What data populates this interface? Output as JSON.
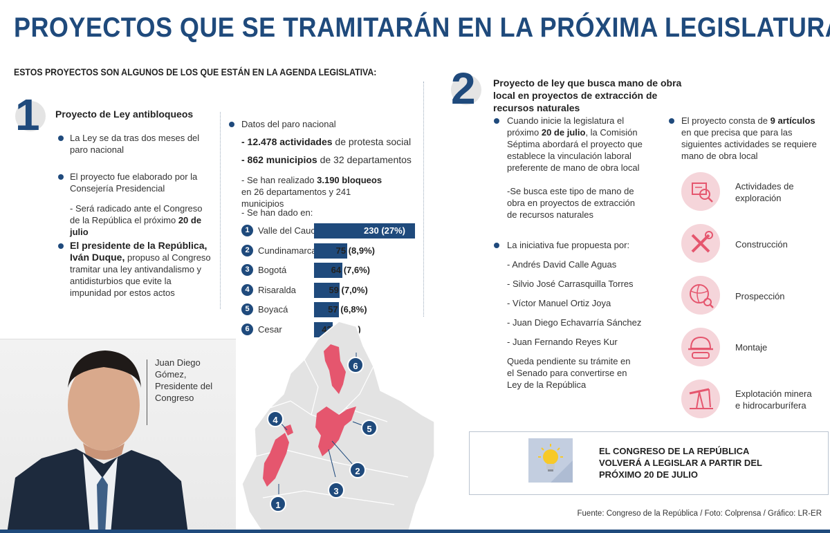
{
  "header": {
    "title": "PROYECTOS QUE SE TRAMITARÁN EN LA PRÓXIMA LEGISLATURA",
    "subtitle": "ESTOS PROYECTOS SON ALGUNOS DE LOS QUE ESTÁN EN LA AGENDA LEGISLATIVA:"
  },
  "section1": {
    "number": "1",
    "heading": "Proyecto de Ley antibloqueos",
    "bullet1": "La Ley se da tras dos meses del paro nacional",
    "bullet2": "El proyecto fue elaborado por la Consejería Presidencial",
    "note_pre": "- Será radicado ante el Congreso de la República el próximo ",
    "note_bold": "20 de julio",
    "bullet3_bold": "El presidente de la República, Iván Duque,",
    "bullet3_rest": " propuso al Congreso tramitar una ley  antivandalismo y antidisturbios que evite la impunidad por estos actos"
  },
  "paro": {
    "heading": "Datos del paro nacional",
    "line1_bold": "- 12.478 actividades",
    "line1_rest": " de protesta social",
    "line2_bold": "- 862 municipios",
    "line2_rest": " de 32 departamentos",
    "line3_pre": "- Se han realizado ",
    "line3_bold": "3.190 bloqueos",
    "line3_rest": " en 26 departamentos y 241 municipios",
    "line4": "- Se han dado en:"
  },
  "chart_data": {
    "type": "bar",
    "categories": [
      "Valle del Cauca",
      "Cundinamarca",
      "Bogotá",
      "Risaralda",
      "Boyacá",
      "Cesar"
    ],
    "ranks": [
      "1",
      "2",
      "3",
      "4",
      "5",
      "6"
    ],
    "values": [
      230,
      75,
      64,
      59,
      57,
      43
    ],
    "labels": [
      "230 (27%)",
      "75 (8,9%)",
      "64 (7,6%)",
      "59 (7,0%)",
      "57 (6,8%)",
      "43 (5,1%)"
    ],
    "percentages": [
      27,
      8.9,
      7.6,
      7.0,
      6.8,
      5.1
    ],
    "color": "#1f4a7c"
  },
  "photo": {
    "caption": "Juan Diego Gómez, Presidente del Congreso"
  },
  "section2": {
    "number": "2",
    "heading": "Proyecto de ley que busca mano de obra local en proyectos de extracción de recursos naturales",
    "b1_pre": "Cuando inicie la legislatura el próximo ",
    "b1_bold": "20 de julio",
    "b1_rest": ", la  Comisión Séptima abordará el proyecto que establece la vinculación laboral preferente de mano de obra local",
    "b1_note": "-Se busca este tipo de mano de obra en proyectos de extracción de recursos naturales",
    "b2": "La iniciativa fue propuesta por:",
    "authors": [
      "- Andrés David Calle Aguas",
      "- Silvio José Carrasquilla Torres",
      "- Víctor Manuel Ortiz Joya",
      "- Juan Diego Echavarría Sánchez",
      "- Juan Fernando Reyes Kur"
    ],
    "pending": "Queda pendiente su trámite en el Senado para convertirse en Ley de la República",
    "b3_pre": "El proyecto consta de ",
    "b3_bold": "9 artículos",
    "b3_rest": " en que precisa que para las siguientes actividades se requiere mano de obra local",
    "activities": [
      {
        "label": "Actividades de exploración",
        "icon": "exploration-icon"
      },
      {
        "label": "Construcción",
        "icon": "construction-tools-icon"
      },
      {
        "label": "Prospección",
        "icon": "globe-magnifier-icon"
      },
      {
        "label": "Montaje",
        "icon": "hard-hat-icon"
      },
      {
        "label": "Explotación minera e hidrocarburífera",
        "icon": "oil-pump-icon"
      }
    ]
  },
  "callout": {
    "text": "EL CONGRESO DE LA REPÚBLICA VOLVERÁ A LEGISLAR A PARTIR DEL PRÓXIMO 20 DE JULIO"
  },
  "footer": {
    "source": "Fuente: Congreso de la República / Foto: Colprensa / Gráfico: LR-ER"
  },
  "colors": {
    "primary": "#1f4a7c",
    "accent_pink": "#e5566e",
    "map_gray": "#e3e3e3"
  }
}
